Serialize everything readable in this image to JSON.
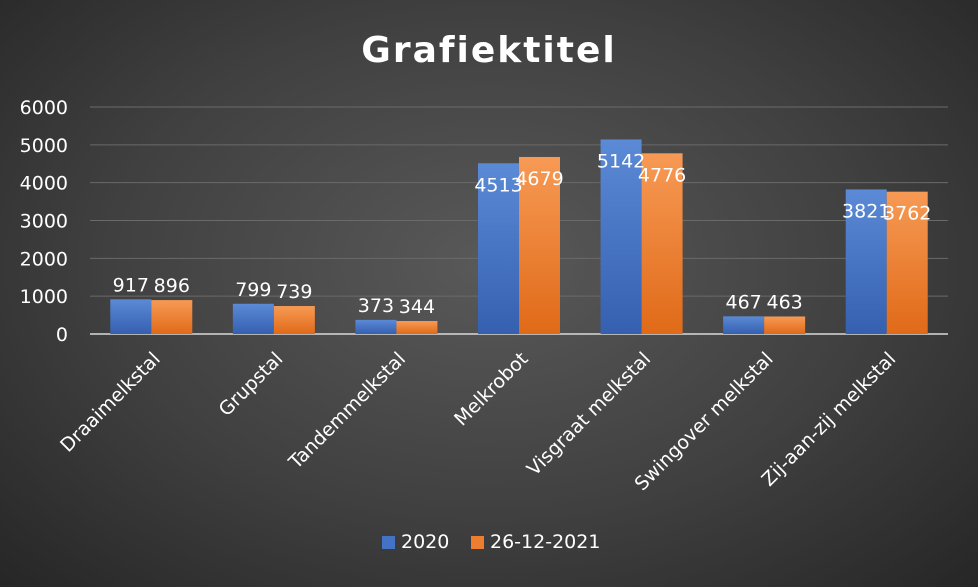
{
  "chart_data": {
    "type": "bar",
    "title": "Grafiektitel",
    "xlabel": "",
    "ylabel": "",
    "ylim": [
      0,
      6000
    ],
    "yticks": [
      "0",
      "1000",
      "2000",
      "3000",
      "4000",
      "5000",
      "6000"
    ],
    "grid": true,
    "legend_position": "bottom",
    "categories": [
      "Draaimelkstal",
      "Grupstal",
      "Tandemmelkstal",
      "Melkrobot",
      "Visgraat melkstal",
      "Swingover melkstal",
      "Zij-aan-zij melkstal"
    ],
    "series": [
      {
        "name": "2020",
        "color": "#4472c4",
        "values": [
          917,
          799,
          373,
          4513,
          5142,
          467,
          3821
        ]
      },
      {
        "name": "26-12-2021",
        "color": "#ed7d31",
        "values": [
          896,
          739,
          344,
          4679,
          4776,
          463,
          3762
        ]
      }
    ]
  }
}
